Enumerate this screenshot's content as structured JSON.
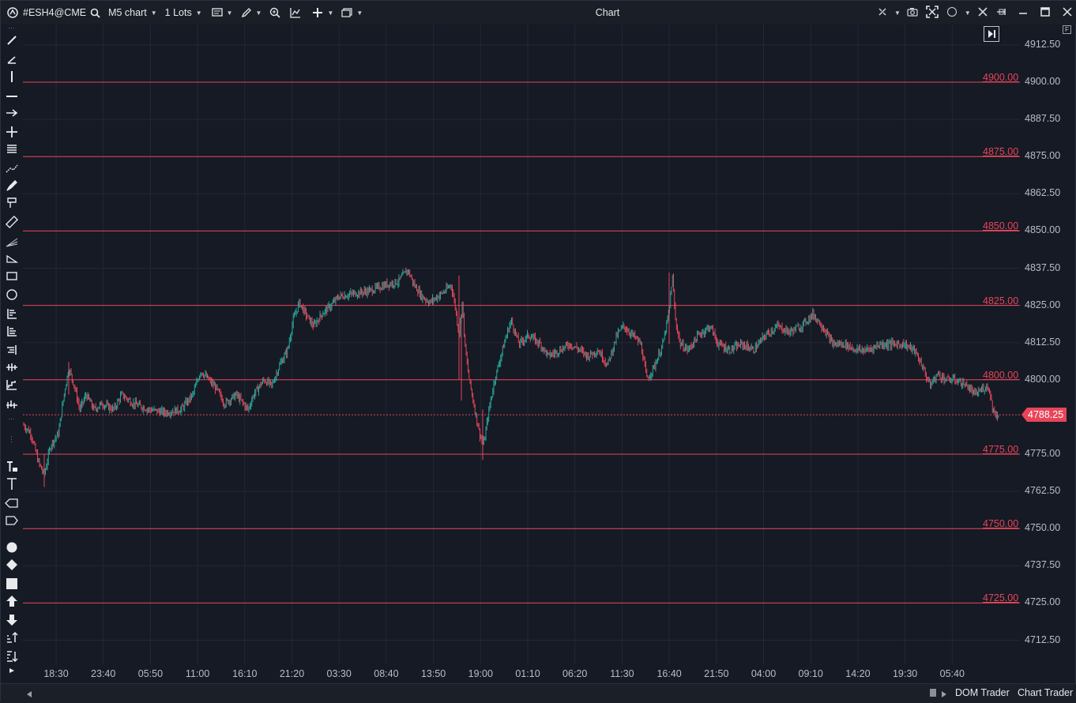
{
  "titlebar": {
    "symbol": "#ESH4@CME",
    "chart_type": "M5 chart",
    "lots": "1 Lots",
    "title": "Chart"
  },
  "yaxis": {
    "ticks": [
      "4912.50",
      "4900.00",
      "4887.50",
      "4875.00",
      "4862.50",
      "4850.00",
      "4837.50",
      "4825.00",
      "4812.50",
      "4800.00",
      "4775.00",
      "4762.50",
      "4750.00",
      "4737.50",
      "4725.00",
      "4712.50"
    ]
  },
  "levels": [
    "4900.00",
    "4875.00",
    "4850.00",
    "4825.00",
    "4800.00",
    "4775.00",
    "4750.00",
    "4725.00"
  ],
  "current_price": "4788.25",
  "xaxis": {
    "ticks": [
      "18:30",
      "23:40",
      "05:50",
      "11:00",
      "16:10",
      "21:20",
      "03:30",
      "08:40",
      "13:50",
      "19:00",
      "01:10",
      "06:20",
      "11:30",
      "16:40",
      "21:50",
      "04:00",
      "09:10",
      "14:20",
      "19:30",
      "05:40"
    ]
  },
  "bottom": {
    "dom_trader": "DOM Trader",
    "chart_trader": "Chart Trader"
  },
  "colors": {
    "background": "#151a24",
    "bull": "#26a69a",
    "bear": "#e8455a",
    "level_line": "#e8455a"
  },
  "corner": {
    "f_label": "F"
  }
}
